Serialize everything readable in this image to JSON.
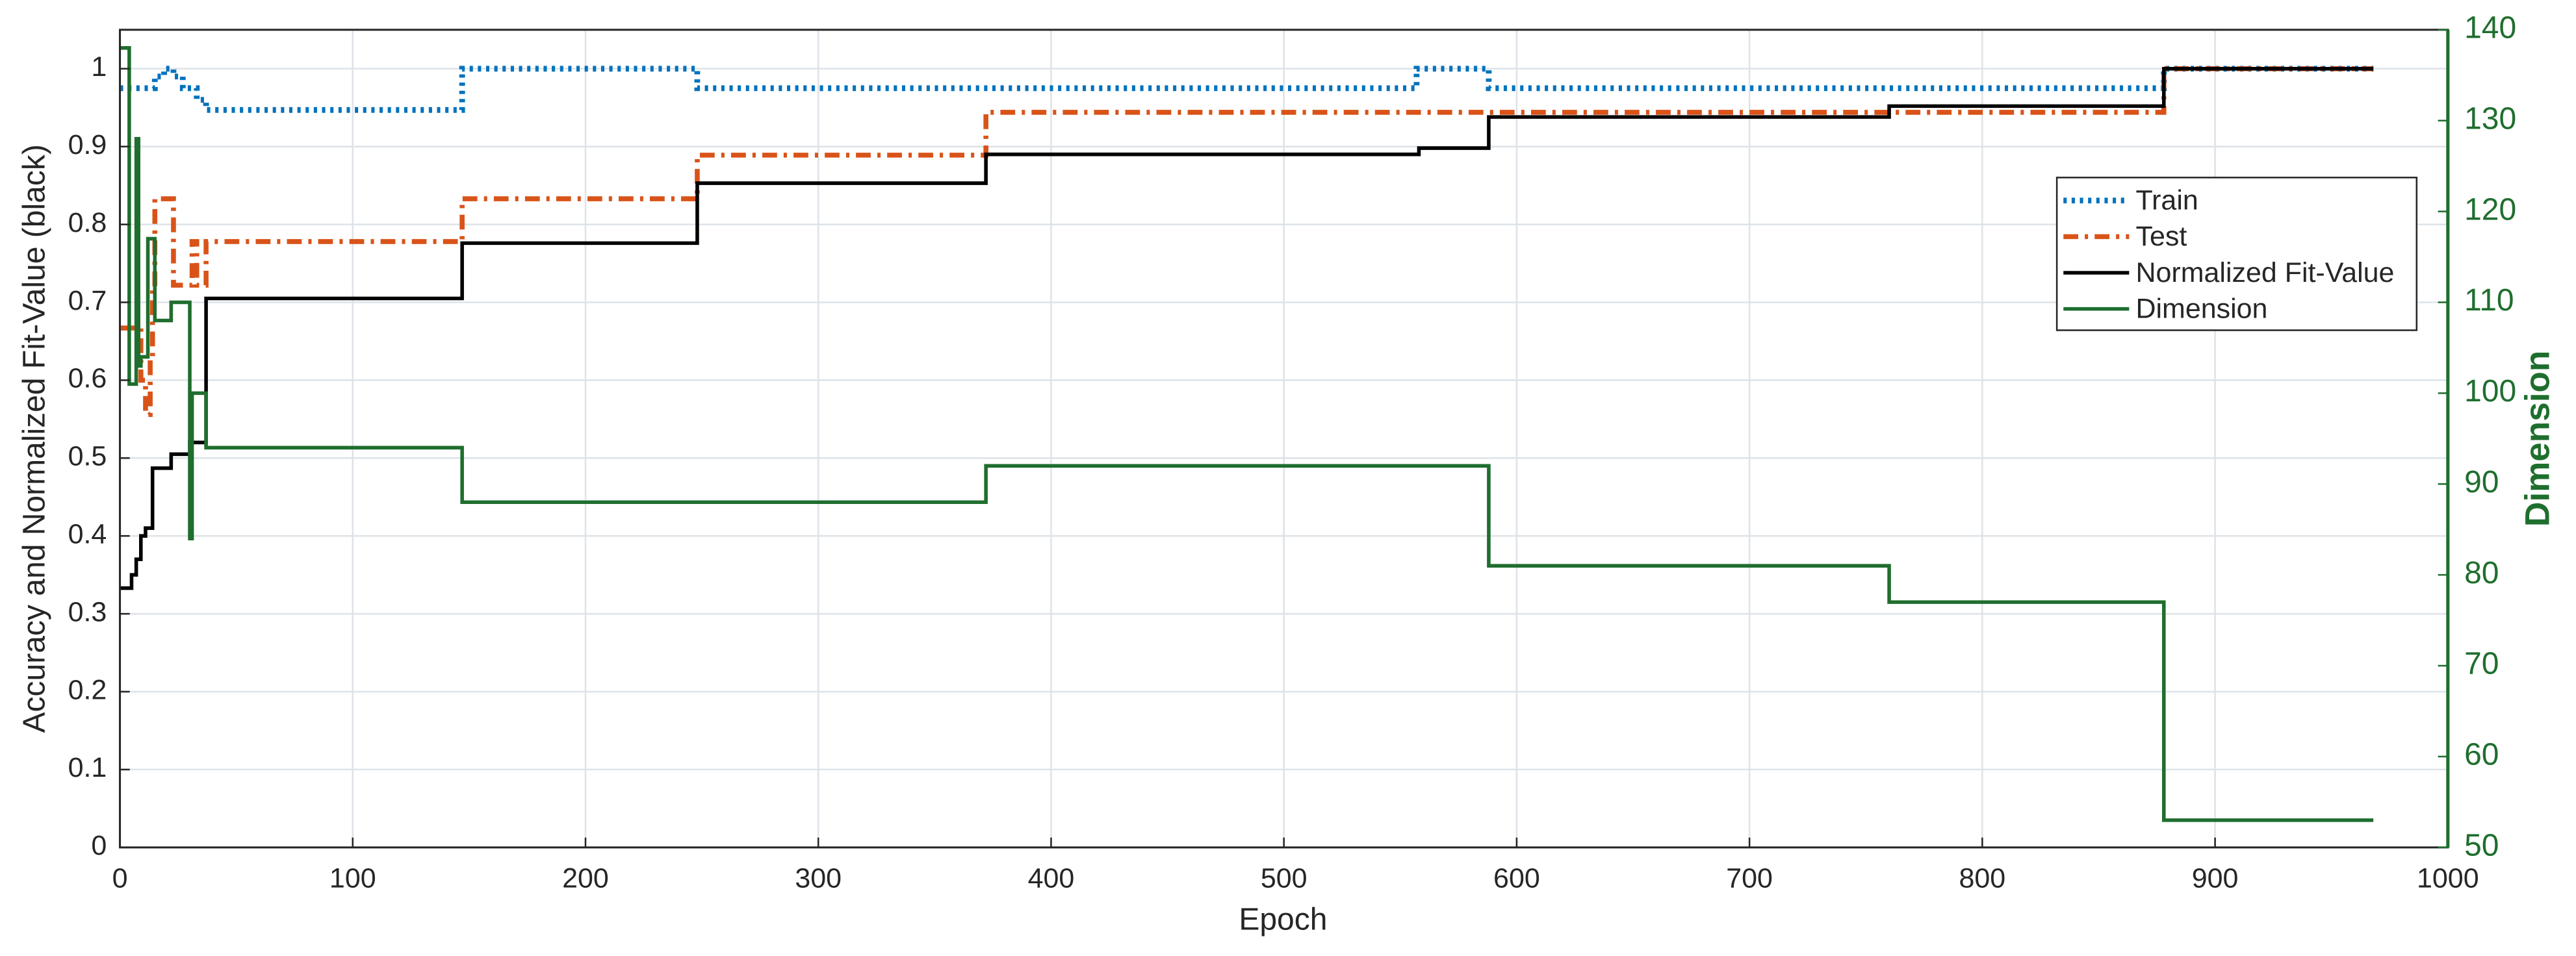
{
  "chart_data": {
    "type": "step",
    "x_label": "Epoch",
    "y_label": "Accuracy and Normalized Fit-Value (black)",
    "y2_label": "Dimension",
    "xlim": [
      0,
      1000
    ],
    "xticks": [
      0,
      100,
      200,
      300,
      400,
      500,
      600,
      700,
      800,
      900,
      1000
    ],
    "ylim": [
      0,
      1.05
    ],
    "yticks": [
      0,
      0.1,
      0.2,
      0.3,
      0.4,
      0.5,
      0.6,
      0.7,
      0.8,
      0.9,
      1
    ],
    "y2lim": [
      50,
      140
    ],
    "y2ticks": [
      50,
      60,
      70,
      80,
      90,
      100,
      110,
      120,
      130,
      140
    ],
    "y2_color": "#1f6e2e",
    "grid": true,
    "legend": "upper right",
    "series": [
      {
        "name": "Train",
        "color": "#0072BD",
        "linestyle": "dotted",
        "x": [
          0,
          15,
          19,
          23,
          27,
          33,
          37,
          147,
          248,
          557,
          588,
          878,
          968
        ],
        "values": [
          0.975,
          0.99,
          1,
          0.99,
          0.975,
          0.96,
          0.947,
          1,
          0.975,
          1,
          0.975,
          1,
          1
        ]
      },
      {
        "name": "Test",
        "color": "#D95319",
        "linestyle": "dashdot",
        "x": [
          0,
          9,
          11,
          13,
          14,
          15,
          23,
          31,
          33,
          37,
          147,
          248,
          372,
          878,
          968
        ],
        "values": [
          0.667,
          0.6,
          0.556,
          0.63,
          0.72,
          0.833,
          0.722,
          0.778,
          0.722,
          0.778,
          0.833,
          0.889,
          0.944,
          1,
          1
        ]
      },
      {
        "name": "Normalized Fit-Value",
        "color": "#000000",
        "linestyle": "solid",
        "x": [
          0,
          5,
          7,
          9,
          11,
          14,
          22,
          30,
          37,
          147,
          248,
          372,
          558,
          588,
          760,
          878,
          968
        ],
        "values": [
          0.333,
          0.35,
          0.37,
          0.4,
          0.41,
          0.487,
          0.505,
          0.52,
          0.705,
          0.776,
          0.853,
          0.89,
          0.898,
          0.938,
          0.952,
          1,
          1
        ]
      },
      {
        "name": "Dimension",
        "color": "#1f6e2e",
        "linestyle": "solid",
        "axis": "y2",
        "x": [
          0,
          4,
          7,
          8,
          9,
          12,
          15,
          22,
          29,
          30,
          31,
          37,
          147,
          372,
          588,
          760,
          878,
          968
        ],
        "values": [
          138,
          101,
          128,
          103,
          104,
          117,
          108,
          110,
          110,
          84,
          100,
          94,
          88,
          92,
          81,
          77,
          53,
          53
        ]
      }
    ]
  }
}
